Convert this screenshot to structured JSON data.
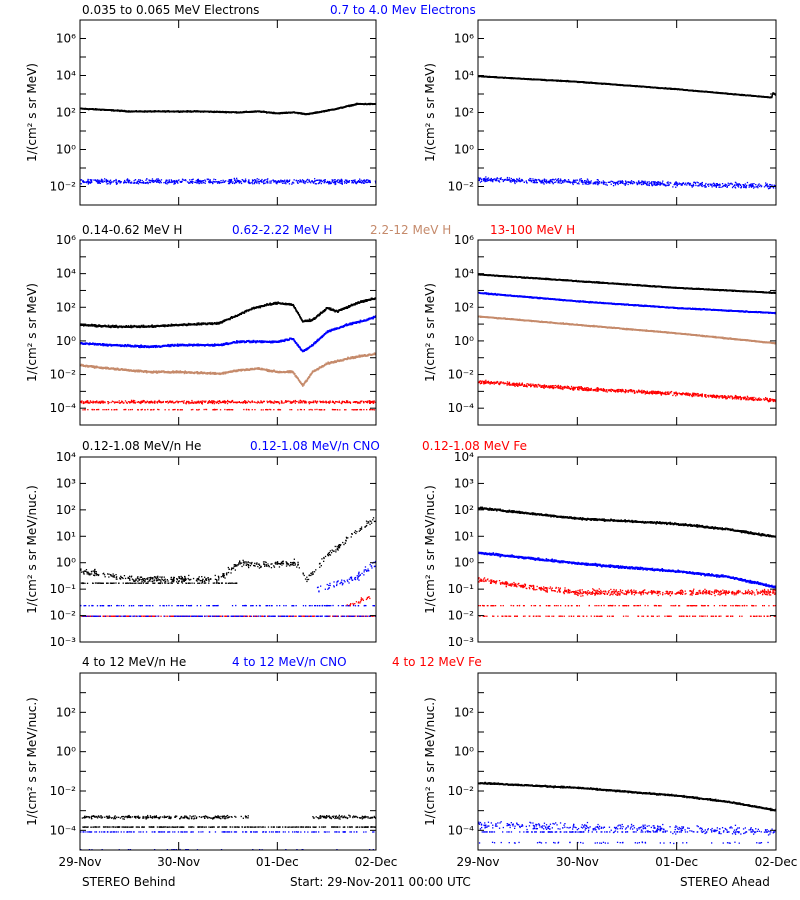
{
  "footer": {
    "left": "STEREO Behind",
    "center": "Start: 29-Nov-2011 00:00 UTC",
    "right": "STEREO Ahead"
  },
  "x_axis": {
    "ticks": [
      0,
      1,
      2,
      3
    ],
    "labels": [
      "29-Nov",
      "30-Nov",
      "01-Dec",
      "02-Dec"
    ],
    "range_days": [
      0,
      3
    ]
  },
  "colors": {
    "black": "#000000",
    "blue": "#0000ff",
    "tan": "#c58a6b",
    "red": "#ff0000"
  },
  "chart_data": [
    {
      "type": "scatter",
      "row": 0,
      "side": "behind",
      "ylabel": "1/(cm² s sr MeV)",
      "ylog_range": [
        -3,
        7
      ],
      "ytick_exponents": [
        -2,
        0,
        2,
        4,
        6
      ],
      "legend": [
        {
          "text": "0.035 to 0.065 MeV Electrons",
          "color": "black"
        },
        {
          "text": "0.7 to 4.0 Mev Electrons",
          "color": "blue"
        }
      ],
      "series": [
        {
          "color": "black",
          "kind": "line",
          "x": [
            0,
            0.2,
            0.5,
            0.8,
            1.2,
            1.6,
            1.8,
            2.0,
            2.15,
            2.3,
            2.45,
            2.6,
            2.8,
            3.0
          ],
          "log10y": [
            2.25,
            2.2,
            2.1,
            2.1,
            2.1,
            2.05,
            2.1,
            2.0,
            2.05,
            1.95,
            2.1,
            2.25,
            2.5,
            2.5
          ],
          "noise": 0.04
        },
        {
          "color": "blue",
          "kind": "dots",
          "x": [
            0,
            3
          ],
          "log10y": [
            -1.7,
            -1.7
          ],
          "noise": 0.2,
          "n": 700
        }
      ]
    },
    {
      "type": "scatter",
      "row": 0,
      "side": "ahead",
      "ylabel": "1/(cm² s sr MeV)",
      "ylog_range": [
        -3,
        7
      ],
      "ytick_exponents": [
        -2,
        0,
        2,
        4,
        6
      ],
      "legend": [],
      "series": [
        {
          "color": "black",
          "kind": "line",
          "x": [
            0,
            1,
            2,
            2.95,
            2.96,
            3.0
          ],
          "log10y": [
            4.0,
            3.7,
            3.3,
            2.85,
            3.1,
            2.95
          ],
          "noise": 0.03
        },
        {
          "color": "blue",
          "kind": "dots",
          "x": [
            0,
            3
          ],
          "log10y": [
            -1.6,
            -1.95
          ],
          "noise": 0.2,
          "n": 700
        }
      ]
    },
    {
      "type": "scatter",
      "row": 1,
      "side": "behind",
      "ylabel": "1/(cm² s sr MeV)",
      "ylog_range": [
        -5,
        6
      ],
      "ytick_exponents": [
        -4,
        -2,
        0,
        2,
        4,
        6
      ],
      "legend": [
        {
          "text": "0.14-0.62 MeV H",
          "color": "black"
        },
        {
          "text": "0.62-2.22 MeV H",
          "color": "blue"
        },
        {
          "text": "2.2-12 MeV H",
          "color": "tan"
        },
        {
          "text": "13-100 MeV H",
          "color": "red"
        }
      ],
      "series": [
        {
          "color": "black",
          "kind": "line",
          "x": [
            0,
            0.3,
            0.7,
            1.0,
            1.4,
            1.6,
            1.75,
            1.9,
            2.0,
            2.15,
            2.25,
            2.35,
            2.5,
            2.6,
            2.8,
            3.0
          ],
          "log10y": [
            1.0,
            0.9,
            0.9,
            1.0,
            1.1,
            1.6,
            2.0,
            2.2,
            2.3,
            2.2,
            1.2,
            1.3,
            2.0,
            1.8,
            2.3,
            2.6
          ],
          "noise": 0.08
        },
        {
          "color": "blue",
          "kind": "line",
          "x": [
            0,
            0.3,
            0.7,
            1.0,
            1.4,
            1.6,
            1.8,
            2.0,
            2.15,
            2.25,
            2.35,
            2.5,
            2.7,
            2.9,
            3.0
          ],
          "log10y": [
            -0.1,
            -0.2,
            -0.3,
            -0.2,
            -0.2,
            0.0,
            0.0,
            0.0,
            0.2,
            -0.6,
            -0.2,
            0.6,
            1.0,
            1.3,
            1.5
          ],
          "noise": 0.08
        },
        {
          "color": "tan",
          "kind": "line",
          "x": [
            0,
            0.3,
            0.7,
            1.0,
            1.4,
            1.6,
            1.8,
            2.0,
            2.15,
            2.25,
            2.35,
            2.5,
            2.7,
            3.0
          ],
          "log10y": [
            -1.4,
            -1.6,
            -1.8,
            -1.8,
            -1.9,
            -1.7,
            -1.6,
            -1.8,
            -1.8,
            -2.6,
            -1.8,
            -1.3,
            -1.0,
            -0.7
          ],
          "noise": 0.08
        },
        {
          "color": "red",
          "kind": "dots",
          "x": [
            0,
            3
          ],
          "log10y": [
            -3.6,
            -3.6
          ],
          "noise": 0.12,
          "n": 600
        },
        {
          "color": "red",
          "kind": "dots",
          "x": [
            0,
            3
          ],
          "log10y": [
            -4.05,
            -4.05
          ],
          "noise": 0.02,
          "n": 150
        }
      ]
    },
    {
      "type": "scatter",
      "row": 1,
      "side": "ahead",
      "ylabel": "1/(cm² s sr MeV)",
      "ylog_range": [
        -5,
        6
      ],
      "ytick_exponents": [
        -4,
        -2,
        0,
        2,
        4,
        6
      ],
      "legend": [],
      "series": [
        {
          "color": "black",
          "kind": "line",
          "x": [
            0,
            1,
            2,
            3
          ],
          "log10y": [
            4.0,
            3.6,
            3.2,
            2.9
          ],
          "noise": 0.04
        },
        {
          "color": "blue",
          "kind": "line",
          "x": [
            0,
            1,
            2,
            3
          ],
          "log10y": [
            2.9,
            2.4,
            2.0,
            1.7
          ],
          "noise": 0.04
        },
        {
          "color": "tan",
          "kind": "line",
          "x": [
            0,
            1,
            2,
            3
          ],
          "log10y": [
            1.5,
            1.0,
            0.5,
            -0.1
          ],
          "noise": 0.04
        },
        {
          "color": "red",
          "kind": "dots",
          "x": [
            0,
            1,
            2,
            3
          ],
          "log10y": [
            -2.4,
            -2.8,
            -3.1,
            -3.5
          ],
          "noise": 0.15,
          "n": 900
        }
      ]
    },
    {
      "type": "scatter",
      "row": 2,
      "side": "behind",
      "ylabel": "1/(cm² s sr MeV/nuc.)",
      "ylog_range": [
        -3,
        4
      ],
      "ytick_exponents": [
        -3,
        -2,
        -1,
        0,
        1,
        2,
        3,
        4
      ],
      "legend": [
        {
          "text": "0.12-1.08 MeV/n He",
          "color": "black"
        },
        {
          "text": "0.12-1.08 MeV/n CNO",
          "color": "blue"
        },
        {
          "text": "0.12-1.08 MeV Fe",
          "color": "red"
        }
      ],
      "series": [
        {
          "color": "black",
          "kind": "dots",
          "x": [
            0,
            0.5,
            1.0,
            1.4,
            1.6,
            1.8,
            2.0,
            2.2,
            2.3,
            2.5,
            2.7,
            2.9,
            3.0
          ],
          "log10y": [
            -0.3,
            -0.6,
            -0.6,
            -0.6,
            0.0,
            -0.1,
            0.0,
            0.0,
            -0.6,
            0.3,
            0.9,
            1.5,
            1.7
          ],
          "noise": 0.18,
          "n": 500
        },
        {
          "color": "black",
          "kind": "dots",
          "x": [
            0,
            1.6
          ],
          "log10y": [
            -0.75,
            -0.75
          ],
          "noise": 0.01,
          "n": 120
        },
        {
          "color": "blue",
          "kind": "dots",
          "x": [
            2.4,
            2.6,
            2.8,
            3.0
          ],
          "log10y": [
            -1.0,
            -0.8,
            -0.5,
            0.0
          ],
          "noise": 0.2,
          "n": 80
        },
        {
          "color": "blue",
          "kind": "dots",
          "x": [
            0,
            3
          ],
          "log10y": [
            -1.6,
            -1.6
          ],
          "noise": 0.005,
          "n": 140
        },
        {
          "color": "red",
          "kind": "dots",
          "x": [
            0,
            3
          ],
          "log10y": [
            -2.0,
            -2.0
          ],
          "noise": 0.005,
          "n": 300
        },
        {
          "color": "blue",
          "kind": "dots",
          "x": [
            0,
            3
          ],
          "log10y": [
            -2.0,
            -2.0
          ],
          "noise": 0.005,
          "n": 200
        },
        {
          "color": "red",
          "kind": "dots",
          "x": [
            2.7,
            3.0
          ],
          "log10y": [
            -1.6,
            -1.2
          ],
          "noise": 0.1,
          "n": 25
        }
      ]
    },
    {
      "type": "scatter",
      "row": 2,
      "side": "ahead",
      "ylabel": "1/(cm² s sr MeV/nuc.)",
      "ylog_range": [
        -3,
        4
      ],
      "ytick_exponents": [
        -3,
        -2,
        -1,
        0,
        1,
        2,
        3,
        4
      ],
      "legend": [],
      "series": [
        {
          "color": "black",
          "kind": "line",
          "x": [
            0,
            1,
            2,
            2.5,
            3.0
          ],
          "log10y": [
            2.1,
            1.7,
            1.5,
            1.3,
            1.0
          ],
          "noise": 0.05
        },
        {
          "color": "blue",
          "kind": "line",
          "x": [
            0,
            1,
            2,
            2.5,
            3.0
          ],
          "log10y": [
            0.4,
            0.0,
            -0.3,
            -0.5,
            -0.9
          ],
          "noise": 0.06
        },
        {
          "color": "red",
          "kind": "dots",
          "x": [
            0,
            0.5,
            1.0,
            2.0,
            3.0
          ],
          "log10y": [
            -0.6,
            -0.9,
            -1.1,
            -1.1,
            -1.1
          ],
          "noise": 0.15,
          "n": 700
        },
        {
          "color": "red",
          "kind": "dots",
          "x": [
            0,
            3
          ],
          "log10y": [
            -1.6,
            -1.6
          ],
          "noise": 0.005,
          "n": 150
        },
        {
          "color": "red",
          "kind": "dots",
          "x": [
            0,
            3
          ],
          "log10y": [
            -2.0,
            -2.0
          ],
          "noise": 0.005,
          "n": 150
        }
      ]
    },
    {
      "type": "scatter",
      "row": 3,
      "side": "behind",
      "ylabel": "1/(cm² s sr MeV/nuc.)",
      "ylog_range": [
        -5,
        4
      ],
      "ytick_exponents": [
        -4,
        -2,
        0,
        2
      ],
      "legend": [
        {
          "text": "4 to 12 MeV/n He",
          "color": "black"
        },
        {
          "text": "4 to 12 MeV/n CNO",
          "color": "blue"
        },
        {
          "text": "4 to 12 MeV Fe",
          "color": "red"
        }
      ],
      "series": [
        {
          "color": "black",
          "kind": "dots",
          "x": [
            0,
            1.7
          ],
          "log10y": [
            -3.3,
            -3.3
          ],
          "noise": 0.12,
          "n": 250
        },
        {
          "color": "black",
          "kind": "dots",
          "x": [
            2.35,
            3.0
          ],
          "log10y": [
            -3.3,
            -3.3
          ],
          "noise": 0.12,
          "n": 100
        },
        {
          "color": "black",
          "kind": "dots",
          "x": [
            0,
            3
          ],
          "log10y": [
            -3.8,
            -3.8
          ],
          "noise": 0.01,
          "n": 300
        },
        {
          "color": "blue",
          "kind": "dots",
          "x": [
            0,
            3
          ],
          "log10y": [
            -4.05,
            -4.05
          ],
          "noise": 0.005,
          "n": 160
        },
        {
          "color": "blue",
          "kind": "dots",
          "x": [
            0,
            3
          ],
          "log10y": [
            -4.95,
            -4.95
          ],
          "noise": 0.005,
          "n": 30
        }
      ]
    },
    {
      "type": "scatter",
      "row": 3,
      "side": "ahead",
      "ylabel": "1/(cm² s sr MeV/nuc.)",
      "ylog_range": [
        -5,
        4
      ],
      "ytick_exponents": [
        -4,
        -2,
        0,
        2
      ],
      "legend": [],
      "series": [
        {
          "color": "black",
          "kind": "line",
          "x": [
            0,
            1,
            2,
            2.5,
            3.0
          ],
          "log10y": [
            -1.55,
            -1.8,
            -2.2,
            -2.5,
            -2.95
          ],
          "noise": 0.05
        },
        {
          "color": "blue",
          "kind": "dots",
          "x": [
            0,
            1,
            2,
            3
          ],
          "log10y": [
            -3.7,
            -3.8,
            -3.9,
            -4.0
          ],
          "noise": 0.3,
          "n": 350
        },
        {
          "color": "blue",
          "kind": "dots",
          "x": [
            0,
            3
          ],
          "log10y": [
            -4.05,
            -4.05
          ],
          "noise": 0.005,
          "n": 150
        },
        {
          "color": "blue",
          "kind": "dots",
          "x": [
            0,
            3
          ],
          "log10y": [
            -4.6,
            -4.6
          ],
          "noise": 0.05,
          "n": 60
        }
      ]
    }
  ]
}
